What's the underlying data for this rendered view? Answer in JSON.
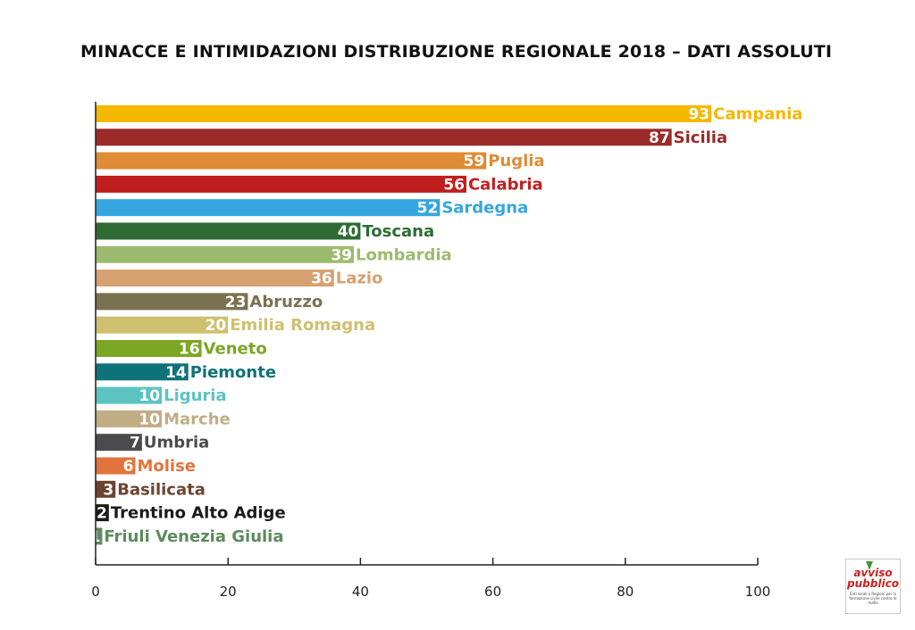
{
  "chart_data": {
    "type": "bar",
    "orientation": "horizontal",
    "title": "MINACCE E INTIMIDAZIONI DISTRIBUZIONE REGIONALE 2018 – DATI ASSOLUTI",
    "xlim": [
      0,
      100
    ],
    "xticks": [
      0,
      20,
      40,
      60,
      80,
      100
    ],
    "grid": false,
    "legend": "none",
    "bars": [
      {
        "category": "Campania",
        "value": 93,
        "color": "#f5b800"
      },
      {
        "category": "Sicilia",
        "value": 87,
        "color": "#9b2a28"
      },
      {
        "category": "Puglia",
        "value": 59,
        "color": "#df8c36"
      },
      {
        "category": "Calabria",
        "value": 56,
        "color": "#c01e1e"
      },
      {
        "category": "Sardegna",
        "value": 52,
        "color": "#36a6e0"
      },
      {
        "category": "Toscana",
        "value": 40,
        "color": "#2e6c34"
      },
      {
        "category": "Lombardia",
        "value": 39,
        "color": "#9cbb6e"
      },
      {
        "category": "Lazio",
        "value": 36,
        "color": "#d7a070"
      },
      {
        "category": "Abruzzo",
        "value": 23,
        "color": "#7a7150"
      },
      {
        "category": "Emilia Romagna",
        "value": 20,
        "color": "#cfc070"
      },
      {
        "category": "Veneto",
        "value": 16,
        "color": "#7ca624"
      },
      {
        "category": "Piemonte",
        "value": 14,
        "color": "#0f7278"
      },
      {
        "category": "Liguria",
        "value": 10,
        "color": "#5cc3c1"
      },
      {
        "category": "Marche",
        "value": 10,
        "color": "#c0ad86"
      },
      {
        "category": "Umbria",
        "value": 7,
        "color": "#4b4b4d"
      },
      {
        "category": "Molise",
        "value": 6,
        "color": "#e3733c"
      },
      {
        "category": "Basilicata",
        "value": 3,
        "color": "#6c4430"
      },
      {
        "category": "Trentino Alto Adige",
        "value": 2,
        "color": "#1a1a1a"
      },
      {
        "category": "Friuli Venezia Giulia",
        "value": 1,
        "color": "#5e8a5e"
      }
    ]
  },
  "logo": {
    "line1": "avviso",
    "line2": "pubblico",
    "tagline": "Enti locali e Regioni per la formazione civile contro le mafie"
  }
}
